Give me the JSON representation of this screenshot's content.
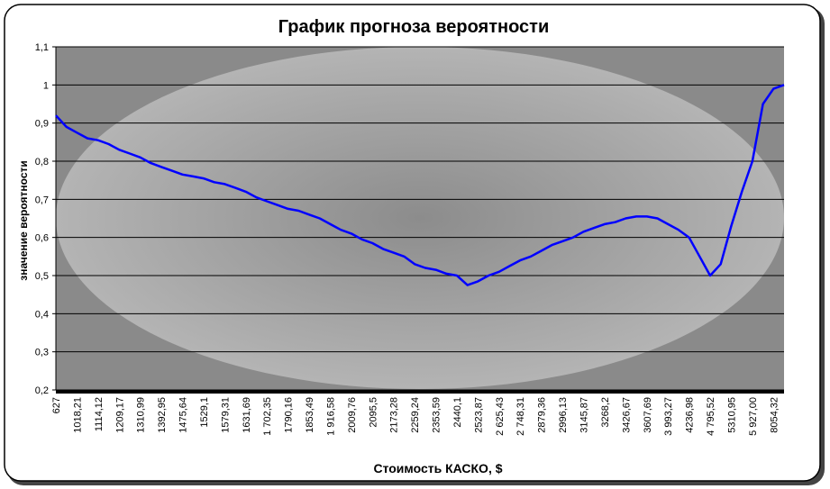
{
  "chart_data": {
    "type": "line",
    "title": "График прогноза вероятности",
    "x_label": "Стоимость КАСКО, $",
    "y_label": "значение вероятности",
    "categories": [
      "627",
      null,
      "1018,21",
      null,
      "1114,12",
      null,
      "1209,17",
      null,
      "1310,99",
      null,
      "1392,95",
      null,
      "1475,64",
      null,
      "1529,1",
      null,
      "1579,31",
      null,
      "1631,69",
      null,
      "1 702,35",
      null,
      "1790,16",
      null,
      "1853,49",
      null,
      "1 916,58",
      null,
      "2009,76",
      null,
      "2095,5",
      null,
      "2173,28",
      null,
      "2259,24",
      null,
      "2353,59",
      null,
      "2440,1",
      null,
      "2523,87",
      null,
      "2 625,43",
      null,
      "2 748,31",
      null,
      "2879,36",
      null,
      "2996,13",
      null,
      "3145,87",
      null,
      "3268,2",
      null,
      "3426,67",
      null,
      "3607,69",
      null,
      "3 993,27",
      null,
      "4236,98",
      null,
      "4 795,52",
      null,
      "5310,95",
      null,
      "5 927,00",
      null,
      "8054,32",
      null
    ],
    "series": [
      {
        "color": "#0000ff",
        "values": [
          0.92,
          0.89,
          0.875,
          0.86,
          0.855,
          0.845,
          0.83,
          0.82,
          0.81,
          0.795,
          0.785,
          0.775,
          0.765,
          0.76,
          0.755,
          0.745,
          0.74,
          0.73,
          0.72,
          0.705,
          0.695,
          0.685,
          0.675,
          0.67,
          0.66,
          0.65,
          0.635,
          0.62,
          0.61,
          0.595,
          0.585,
          0.57,
          0.56,
          0.55,
          0.53,
          0.52,
          0.515,
          0.505,
          0.5,
          0.475,
          0.485,
          0.5,
          0.51,
          0.525,
          0.54,
          0.55,
          0.565,
          0.58,
          0.59,
          0.6,
          0.615,
          0.625,
          0.635,
          0.64,
          0.65,
          0.655,
          0.655,
          0.65,
          0.635,
          0.62,
          0.6,
          0.55,
          0.5,
          0.53,
          0.63,
          0.72,
          0.8,
          0.95,
          0.99,
          1.0
        ]
      }
    ],
    "ylim": [
      0.2,
      1.1
    ],
    "yticks": [
      {
        "value": 0.2,
        "label": "0,2"
      },
      {
        "value": 0.3,
        "label": "0,3"
      },
      {
        "value": 0.4,
        "label": "0,4"
      },
      {
        "value": 0.5,
        "label": "0,5"
      },
      {
        "value": 0.6,
        "label": "0,6"
      },
      {
        "value": 0.7,
        "label": "0,7"
      },
      {
        "value": 0.8,
        "label": "0,8"
      },
      {
        "value": 0.9,
        "label": "0,9"
      },
      1,
      {
        "value": 1.1,
        "label": "1,1"
      }
    ],
    "grid": true
  }
}
